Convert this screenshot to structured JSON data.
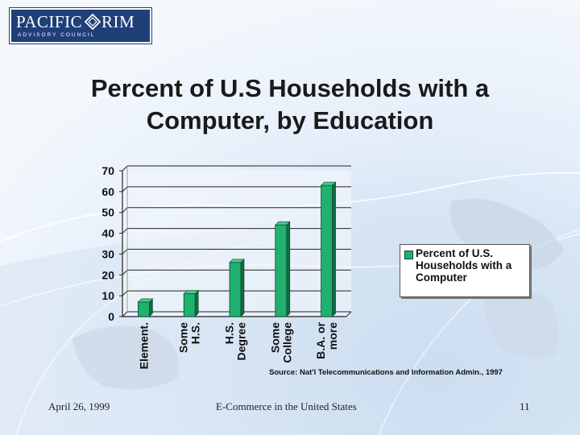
{
  "logo": {
    "word1": "PACIFIC",
    "word2": "RIM",
    "tagline": "ADVISORY COUNCIL",
    "colors": {
      "background": "#1f3f78",
      "text": "#ffffff"
    },
    "mark_icon": "diamond-emblem-icon"
  },
  "title": {
    "line1": "Percent of U.S Households with a",
    "line2": "Computer, by Education"
  },
  "chart_data": {
    "type": "bar",
    "categories": [
      [
        "Element."
      ],
      [
        "Some",
        "H.S."
      ],
      [
        "H.S.",
        "Degree"
      ],
      [
        "Some",
        "College"
      ],
      [
        "B.A. or",
        "more"
      ]
    ],
    "series": [
      {
        "name": "Percent of U.S. Households with a Computer",
        "values": [
          7,
          11,
          26,
          44,
          63
        ]
      }
    ],
    "ylim": [
      0,
      70
    ],
    "yticks": [
      0,
      10,
      20,
      30,
      40,
      50,
      60,
      70
    ],
    "grid": true,
    "legend_position": "right",
    "bar_color": "#20b070"
  },
  "source": "Source: Nat'l Telecommunications and Information Admin., 1997",
  "footer": {
    "date": "April 26, 1999",
    "center": "E-Commerce in the United States",
    "page": "11"
  }
}
